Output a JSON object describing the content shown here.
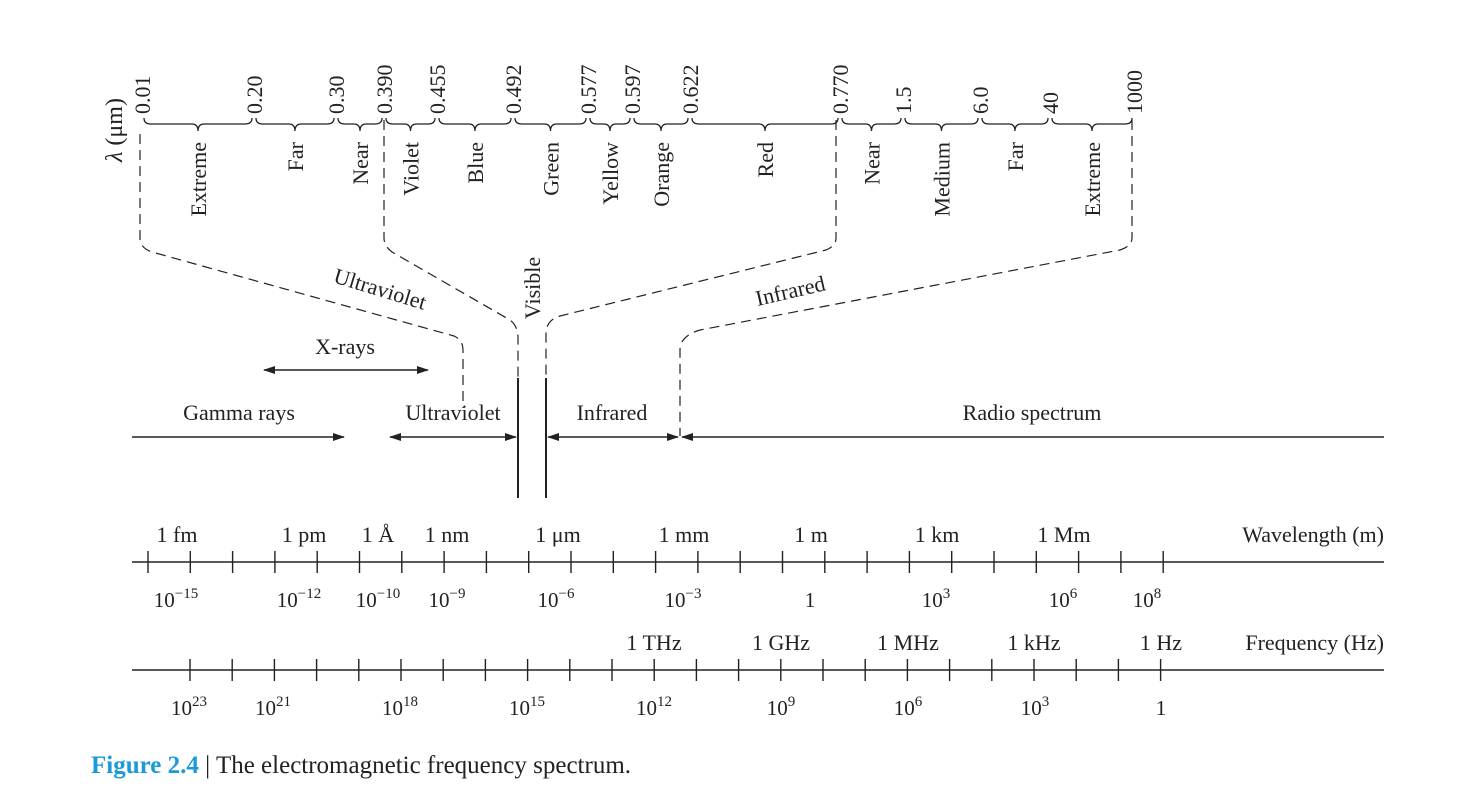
{
  "top_axis": {
    "title_lambda": "λ",
    "title_unit": "(μm)",
    "ticks": [
      "0.01",
      "0.20",
      "0.30",
      "0.390",
      "0.455",
      "0.492",
      "0.577",
      "0.597",
      "0.622",
      "0.770",
      "1.5",
      "6.0",
      "40",
      "1000"
    ],
    "bands": [
      "Extreme",
      "Far",
      "Near",
      "Violet",
      "Blue",
      "Green",
      "Yellow",
      "Orange",
      "Red",
      "Near",
      "Medium",
      "Far",
      "Extreme"
    ]
  },
  "groups": {
    "ultraviolet": "Ultraviolet",
    "visible": "Visible",
    "infrared": "Infrared"
  },
  "spectrum": {
    "xrays": "X-rays",
    "gamma": "Gamma rays",
    "ultraviolet": "Ultraviolet",
    "infrared": "Infrared",
    "radio": "Radio spectrum"
  },
  "wavelength_axis": {
    "title": "Wavelength (m)",
    "labels": [
      "1 fm",
      "1 pm",
      "1 Å",
      "1 nm",
      "1 μm",
      "1 mm",
      "1 m",
      "1 km",
      "1 Mm"
    ],
    "powers": [
      {
        "base": "10",
        "exp": "−15"
      },
      {
        "base": "10",
        "exp": "−12"
      },
      {
        "base": "10",
        "exp": "−10"
      },
      {
        "base": "10",
        "exp": "−9"
      },
      {
        "base": "10",
        "exp": "−6"
      },
      {
        "base": "10",
        "exp": "−3"
      },
      {
        "base": "1",
        "exp": ""
      },
      {
        "base": "10",
        "exp": "3"
      },
      {
        "base": "10",
        "exp": "6"
      },
      {
        "base": "10",
        "exp": "8"
      }
    ]
  },
  "frequency_axis": {
    "title": "Frequency (Hz)",
    "labels": [
      "1 THz",
      "1 GHz",
      "1 MHz",
      "1 kHz",
      "1 Hz"
    ],
    "powers": [
      {
        "base": "10",
        "exp": "23"
      },
      {
        "base": "10",
        "exp": "21"
      },
      {
        "base": "10",
        "exp": "18"
      },
      {
        "base": "10",
        "exp": "15"
      },
      {
        "base": "10",
        "exp": "12"
      },
      {
        "base": "10",
        "exp": "9"
      },
      {
        "base": "10",
        "exp": "6"
      },
      {
        "base": "10",
        "exp": "3"
      },
      {
        "base": "1",
        "exp": ""
      }
    ]
  },
  "caption": {
    "label": "Figure 2.4",
    "separator": " | ",
    "text": "The electromagnetic frequency spectrum."
  },
  "colors": {
    "ink": "#222222",
    "caption_accent": "#1a9ad6"
  }
}
